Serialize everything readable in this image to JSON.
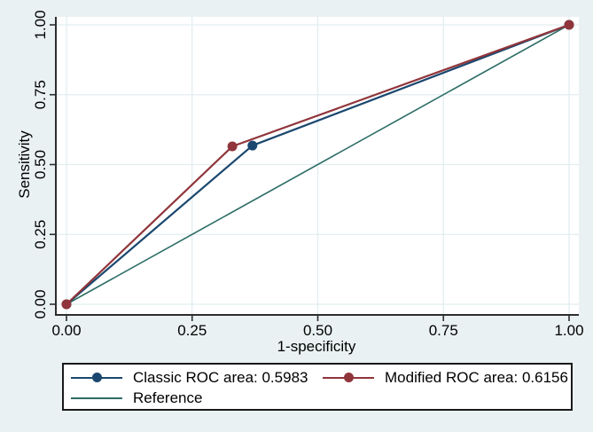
{
  "figure": {
    "background_color": "#eaf1f2",
    "plot_background_color": "#ffffff",
    "gridline_color": "#e2edf0",
    "axis_color": "#2e2e2e",
    "text_color": "#000000",
    "legend_border_color": "#1a1a1a"
  },
  "chart_data": {
    "type": "line",
    "title": "",
    "xlabel": "1-specificity",
    "ylabel": "Sensitivity",
    "xlim": [
      0,
      1
    ],
    "ylim": [
      0,
      1
    ],
    "grid": true,
    "legend_position": "bottom",
    "xticks": {
      "values": [
        0,
        0.25,
        0.5,
        0.75,
        1
      ],
      "labels": [
        "0.00",
        "0.25",
        "0.50",
        "0.75",
        "1.00"
      ]
    },
    "yticks": {
      "values": [
        0,
        0.25,
        0.5,
        0.75,
        1
      ],
      "labels": [
        "0.00",
        "0.25",
        "0.50",
        "0.75",
        "1.00"
      ]
    },
    "series": [
      {
        "name": "Classic ROC area: 0.5983",
        "auc": 0.5983,
        "color": "#1a476f",
        "marker": true,
        "points": [
          [
            0,
            0
          ],
          [
            0.37,
            0.568
          ],
          [
            1,
            1
          ]
        ]
      },
      {
        "name": "Modified ROC area: 0.6156",
        "auc": 0.6156,
        "color": "#90353b",
        "marker": true,
        "points": [
          [
            0,
            0
          ],
          [
            0.33,
            0.565
          ],
          [
            1,
            1
          ]
        ]
      },
      {
        "name": "Reference",
        "color": "#2d6d66",
        "marker": false,
        "points": [
          [
            0,
            0
          ],
          [
            1,
            1
          ]
        ]
      }
    ]
  }
}
